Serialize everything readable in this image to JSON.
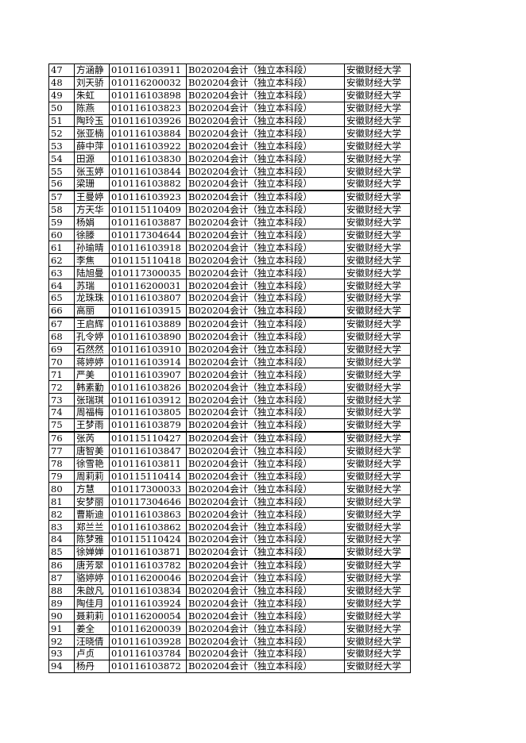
{
  "major": "B020204会计（独立本科段）",
  "school": "安徽财经大学",
  "thick_after": [
    56,
    66,
    75,
    85
  ],
  "rows": [
    {
      "no": "47",
      "name": "方涵静",
      "id": "010116103911"
    },
    {
      "no": "48",
      "name": "刘天骄",
      "id": "010116200032"
    },
    {
      "no": "49",
      "name": "朱虹",
      "id": "010116103898"
    },
    {
      "no": "50",
      "name": "陈燕",
      "id": "010116103823"
    },
    {
      "no": "51",
      "name": "陶玲玉",
      "id": "010116103926"
    },
    {
      "no": "52",
      "name": "张亚楠",
      "id": "010116103884"
    },
    {
      "no": "53",
      "name": "薛中萍",
      "id": "010116103922"
    },
    {
      "no": "54",
      "name": "田源",
      "id": "010116103830"
    },
    {
      "no": "55",
      "name": "张玉婷",
      "id": "010116103844"
    },
    {
      "no": "56",
      "name": "梁珊",
      "id": "010116103882"
    },
    {
      "no": "57",
      "name": "王曼婷",
      "id": "010116103923"
    },
    {
      "no": "58",
      "name": "方天华",
      "id": "010115110409"
    },
    {
      "no": "59",
      "name": "杨娟",
      "id": "010116103887"
    },
    {
      "no": "60",
      "name": "徐滕",
      "id": "010117304644"
    },
    {
      "no": "61",
      "name": "孙瑜晴",
      "id": "010116103918"
    },
    {
      "no": "62",
      "name": "李焦",
      "id": "010115110418"
    },
    {
      "no": "63",
      "name": "陆旭曼",
      "id": "010117300035"
    },
    {
      "no": "64",
      "name": "苏瑞",
      "id": "010116200031"
    },
    {
      "no": "65",
      "name": "龙珠珠",
      "id": "010116103807"
    },
    {
      "no": "66",
      "name": "高丽",
      "id": "010116103915"
    },
    {
      "no": "67",
      "name": "王启辉",
      "id": "010116103889"
    },
    {
      "no": "68",
      "name": "孔令婷",
      "id": "010116103890"
    },
    {
      "no": "69",
      "name": "石然然",
      "id": "010116103910"
    },
    {
      "no": "70",
      "name": "蒋婷婷",
      "id": "010116103914"
    },
    {
      "no": "71",
      "name": "严美",
      "id": "010116103907"
    },
    {
      "no": "72",
      "name": "韩素勤",
      "id": "010116103826"
    },
    {
      "no": "73",
      "name": "张瑞琪",
      "id": "010116103912"
    },
    {
      "no": "74",
      "name": "周福梅",
      "id": "010116103805"
    },
    {
      "no": "75",
      "name": "王梦雨",
      "id": "010116103879"
    },
    {
      "no": "76",
      "name": "张芮",
      "id": "010115110427"
    },
    {
      "no": "77",
      "name": "唐智美",
      "id": "010116103847"
    },
    {
      "no": "78",
      "name": "徐雪艳",
      "id": "010116103811"
    },
    {
      "no": "79",
      "name": "周莉莉",
      "id": "010115110414"
    },
    {
      "no": "80",
      "name": "方慧",
      "id": "010117300033"
    },
    {
      "no": "81",
      "name": "安梦丽",
      "id": "010117304646"
    },
    {
      "no": "82",
      "name": "曹斯迪",
      "id": "010116103863"
    },
    {
      "no": "83",
      "name": "郑兰兰",
      "id": "010116103862"
    },
    {
      "no": "84",
      "name": "陈梦雅",
      "id": "010115110424"
    },
    {
      "no": "85",
      "name": "徐婵婵",
      "id": "010116103871"
    },
    {
      "no": "86",
      "name": "唐芳翠",
      "id": "010116103782"
    },
    {
      "no": "87",
      "name": "骆婷婷",
      "id": "010116200046"
    },
    {
      "no": "88",
      "name": "朱啟凡",
      "id": "010116103834"
    },
    {
      "no": "89",
      "name": "陶佳月",
      "id": "010116103924"
    },
    {
      "no": "90",
      "name": "聂莉莉",
      "id": "010116200054"
    },
    {
      "no": "91",
      "name": "姜全",
      "id": "010116200039"
    },
    {
      "no": "92",
      "name": "汪晓倩",
      "id": "010116103928"
    },
    {
      "no": "93",
      "name": "卢贞",
      "id": "010116103784"
    },
    {
      "no": "94",
      "name": "杨丹",
      "id": "010116103872"
    }
  ]
}
